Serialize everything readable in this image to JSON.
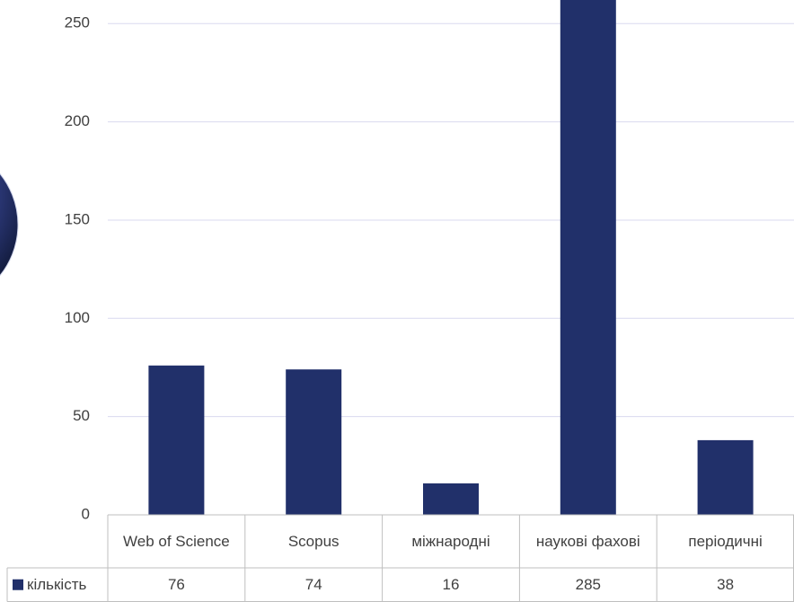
{
  "chart_data": {
    "type": "bar",
    "categories": [
      "Web of Science",
      "Scopus",
      "міжнародні",
      "наукові фахові",
      "періодичні"
    ],
    "series": [
      {
        "name": "кількість",
        "color": "#21306a",
        "values": [
          76,
          74,
          16,
          285,
          38
        ]
      }
    ],
    "ylim": [
      0,
      262
    ],
    "yticks": [
      0,
      50,
      100,
      150,
      200,
      250
    ],
    "grid": true,
    "data_table": true
  }
}
